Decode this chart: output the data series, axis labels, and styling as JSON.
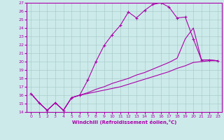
{
  "xlabel": "Windchill (Refroidissement éolien,°C)",
  "bg_color": "#cdeaea",
  "line_color": "#aa00aa",
  "grid_color": "#aacccc",
  "xlim": [
    -0.5,
    23.5
  ],
  "ylim": [
    14,
    27
  ],
  "xticks": [
    0,
    1,
    2,
    3,
    4,
    5,
    6,
    7,
    8,
    9,
    10,
    11,
    12,
    13,
    14,
    15,
    16,
    17,
    18,
    19,
    20,
    21,
    22,
    23
  ],
  "yticks": [
    14,
    15,
    16,
    17,
    18,
    19,
    20,
    21,
    22,
    23,
    24,
    25,
    26,
    27
  ],
  "line1_x": [
    0,
    1,
    2,
    3,
    4,
    5,
    6,
    7,
    8,
    9,
    10,
    11,
    12,
    13,
    14,
    15,
    16,
    17,
    18,
    19,
    20,
    21,
    22,
    23
  ],
  "line1_y": [
    16.2,
    15.1,
    14.2,
    15.1,
    14.2,
    15.7,
    16.0,
    17.8,
    20.0,
    21.9,
    23.2,
    24.3,
    25.9,
    25.2,
    26.1,
    26.8,
    27.0,
    26.5,
    25.2,
    25.3,
    22.7,
    20.2,
    20.2,
    20.1
  ],
  "line2_x": [
    0,
    1,
    2,
    3,
    4,
    5,
    6,
    7,
    8,
    9,
    10,
    11,
    12,
    13,
    14,
    15,
    16,
    17,
    18,
    19,
    20,
    21,
    22,
    23
  ],
  "line2_y": [
    16.2,
    15.1,
    14.2,
    15.1,
    14.2,
    15.7,
    16.0,
    16.3,
    16.7,
    17.0,
    17.4,
    17.7,
    18.0,
    18.4,
    18.7,
    19.1,
    19.5,
    19.9,
    20.4,
    22.7,
    24.0,
    20.2,
    20.2,
    20.1
  ],
  "line3_x": [
    0,
    1,
    2,
    3,
    4,
    5,
    6,
    7,
    8,
    9,
    10,
    11,
    12,
    13,
    14,
    15,
    16,
    17,
    18,
    19,
    20,
    21,
    22,
    23
  ],
  "line3_y": [
    16.2,
    15.1,
    14.2,
    15.1,
    14.2,
    15.7,
    16.0,
    16.2,
    16.4,
    16.6,
    16.8,
    17.0,
    17.3,
    17.6,
    17.9,
    18.2,
    18.5,
    18.8,
    19.2,
    19.5,
    19.9,
    20.0,
    20.1,
    20.1
  ]
}
